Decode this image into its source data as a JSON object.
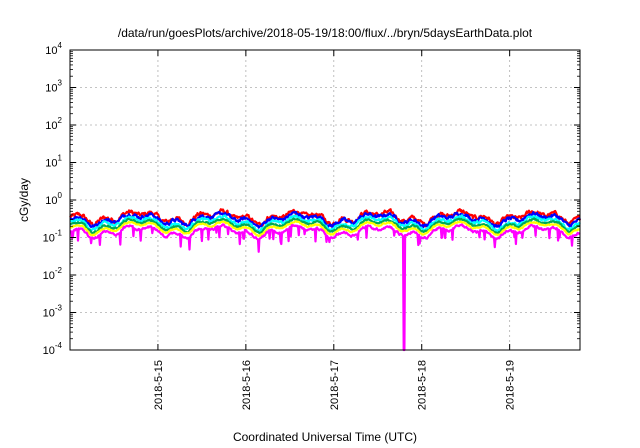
{
  "chart_data": {
    "type": "line",
    "title": "/data/run/goesPlots/archive/2018-05-19/18:00/flux/../bryn/5daysEarthData.plot",
    "xlabel": "Coordinated Universal Time (UTC)",
    "ylabel": "cGy/day",
    "yscale": "log",
    "ylim": [
      0.0001,
      10000
    ],
    "xlim_days": [
      14.0,
      19.8
    ],
    "grid": true,
    "legend": "none",
    "x_ticks": [
      {
        "day": 15,
        "label": "2018-5-15"
      },
      {
        "day": 16,
        "label": "2018-5-16"
      },
      {
        "day": 17,
        "label": "2018-5-17"
      },
      {
        "day": 18,
        "label": "2018-5-18"
      },
      {
        "day": 19,
        "label": "2018-5-19"
      }
    ],
    "y_ticks": [
      {
        "value": 0.0001,
        "base": "10",
        "exp": "-4"
      },
      {
        "value": 0.001,
        "base": "10",
        "exp": "-3"
      },
      {
        "value": 0.01,
        "base": "10",
        "exp": "-2"
      },
      {
        "value": 0.1,
        "base": "10",
        "exp": "-1"
      },
      {
        "value": 1,
        "base": "10",
        "exp": "0"
      },
      {
        "value": 10,
        "base": "10",
        "exp": "1"
      },
      {
        "value": 100,
        "base": "10",
        "exp": "2"
      },
      {
        "value": 1000,
        "base": "10",
        "exp": "3"
      },
      {
        "value": 10000,
        "base": "10",
        "exp": "4"
      }
    ],
    "series": [
      {
        "color": "#ff0000",
        "level": 0.36,
        "spread": 0.1
      },
      {
        "color": "#0000ff",
        "level": 0.32,
        "spread": 0.08
      },
      {
        "color": "#00ffff",
        "level": 0.26,
        "spread": 0.06
      },
      {
        "color": "#00aa55",
        "level": 0.22,
        "spread": 0.04
      },
      {
        "color": "#ffff00",
        "level": 0.19,
        "spread": 0.03
      },
      {
        "color": "#ff00ff",
        "level": 0.15,
        "spread": 0.05
      }
    ],
    "dropout": {
      "series": "#ff00ff",
      "day": 17.8,
      "value": 0.0001
    }
  }
}
